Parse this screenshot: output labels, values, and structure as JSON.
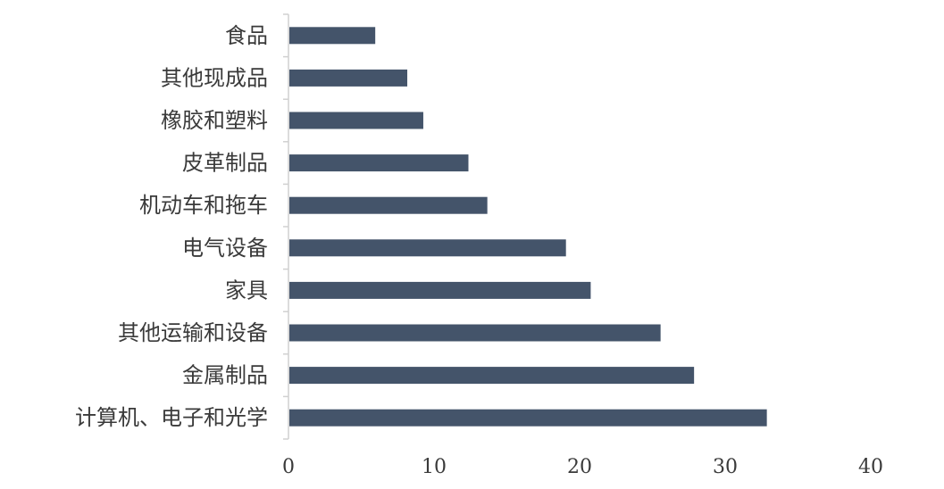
{
  "chart_data": {
    "type": "bar",
    "orientation": "horizontal",
    "title": "",
    "xlabel": "",
    "ylabel": "",
    "categories": [
      "食品",
      "其他现成品",
      "橡胶和塑料",
      "皮革制品",
      "机动车和拖车",
      "电气设备",
      "家具",
      "其他运输和设备",
      "金属制品",
      "计算机、电子和光学"
    ],
    "values": [
      5.9,
      8.1,
      9.2,
      12.3,
      13.6,
      19.0,
      20.7,
      25.5,
      27.8,
      32.8
    ],
    "xlim": [
      0,
      40
    ],
    "xticks": [
      "0",
      "10",
      "20",
      "30",
      "40"
    ],
    "grid": false,
    "legend": "none",
    "bar_color": "#44546a",
    "axis_color": "#d0d0d0"
  }
}
